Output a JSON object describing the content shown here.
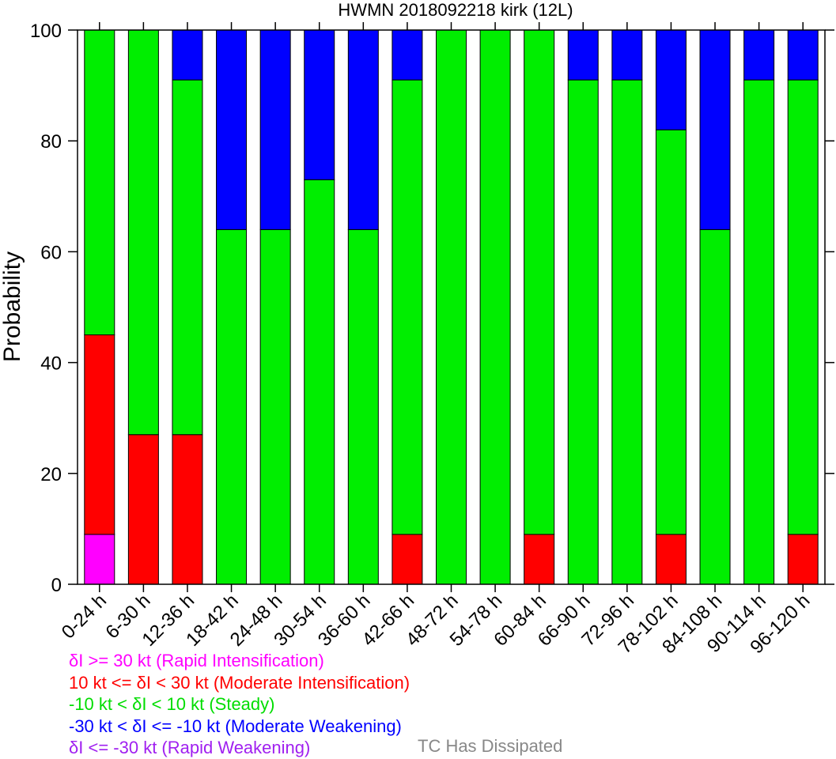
{
  "chart_data": {
    "type": "bar",
    "stacked": true,
    "title": "HWMN 2018092218 kirk (12L)",
    "xlabel": "",
    "ylabel": "Probability",
    "ylim": [
      0,
      100
    ],
    "yticks": [
      "0",
      "20",
      "40",
      "60",
      "80",
      "100"
    ],
    "grid": false,
    "categories": [
      "0-24 h",
      "6-30 h",
      "12-36 h",
      "18-42 h",
      "24-48 h",
      "30-54 h",
      "36-60 h",
      "42-66 h",
      "48-72 h",
      "54-78 h",
      "60-84 h",
      "66-90 h",
      "72-96 h",
      "78-102 h",
      "84-108 h",
      "90-114 h",
      "96-120 h"
    ],
    "series": [
      {
        "name": "δI >= 30 kt (Rapid Intensification)",
        "color": "#ff00ff",
        "values": [
          9,
          0,
          0,
          0,
          0,
          0,
          0,
          0,
          0,
          0,
          0,
          0,
          0,
          0,
          0,
          0,
          0
        ]
      },
      {
        "name": "10 kt <= δI < 30 kt (Moderate Intensification)",
        "color": "#ff0000",
        "values": [
          36,
          27,
          27,
          0,
          0,
          0,
          0,
          9,
          0,
          0,
          9,
          0,
          0,
          9,
          0,
          0,
          9
        ]
      },
      {
        "name": "-10 kt < δI < 10 kt (Steady)",
        "color": "#00ee00",
        "values": [
          55,
          73,
          64,
          64,
          64,
          73,
          64,
          82,
          100,
          100,
          91,
          91,
          91,
          73,
          64,
          91,
          82
        ]
      },
      {
        "name": "-30 kt < δI <= -10 kt (Moderate Weakening)",
        "color": "#0000ff",
        "values": [
          0,
          0,
          9,
          36,
          36,
          27,
          36,
          9,
          0,
          0,
          0,
          9,
          9,
          18,
          36,
          9,
          9
        ]
      },
      {
        "name": "δI <= -30 kt (Rapid Weakening)",
        "color": "#a020f0",
        "values": [
          0,
          0,
          0,
          0,
          0,
          0,
          0,
          0,
          0,
          0,
          0,
          0,
          0,
          0,
          0,
          0,
          0
        ]
      }
    ]
  },
  "legend": {
    "items": [
      {
        "text": "δI >= 30 kt (Rapid Intensification)",
        "color": "#ff00ff"
      },
      {
        "text": "10 kt <= δI < 30 kt (Moderate Intensification)",
        "color": "#ff0000"
      },
      {
        "text": "-10 kt < δI < 10 kt (Steady)",
        "color": "#00dd00"
      },
      {
        "text": "-30 kt < δI <= -10 kt (Moderate Weakening)",
        "color": "#0000ff"
      },
      {
        "text": "δI <= -30 kt (Rapid Weakening)",
        "color": "#a020f0"
      }
    ],
    "dissipated_text": "TC Has Dissipated",
    "dissipated_color": "#888888"
  }
}
